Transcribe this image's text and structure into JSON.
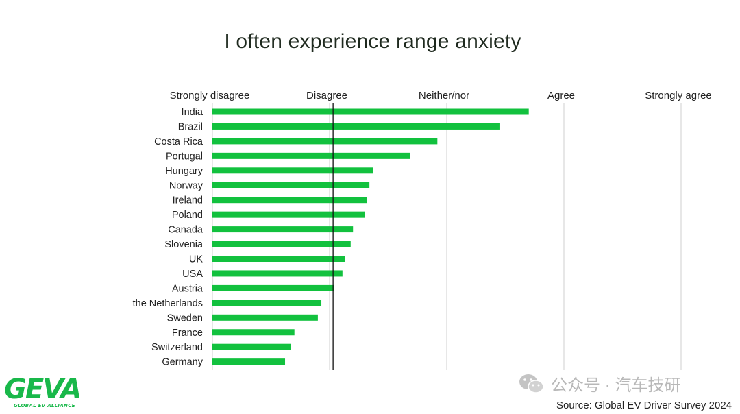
{
  "chart_data": {
    "type": "bar",
    "orientation": "horizontal",
    "title": "I often experience range anxiety",
    "scale_labels": [
      "Strongly disagree",
      "Disagree",
      "Neither/nor",
      "Agree",
      "Strongly agree"
    ],
    "xlim": [
      1,
      5
    ],
    "reference_value": 2.03,
    "grid": true,
    "categories": [
      "India",
      "Brazil",
      "Costa Rica",
      "Portugal",
      "Hungary",
      "Norway",
      "Ireland",
      "Poland",
      "Canada",
      "Slovenia",
      "UK",
      "USA",
      "Austria",
      "the Netherlands",
      "Sweden",
      "France",
      "Switzerland",
      "Germany"
    ],
    "values": [
      3.7,
      3.45,
      2.92,
      2.69,
      2.37,
      2.34,
      2.32,
      2.3,
      2.2,
      2.18,
      2.13,
      2.11,
      2.04,
      1.93,
      1.9,
      1.7,
      1.67,
      1.62
    ],
    "bar_color": "#12c13e"
  },
  "source": "Source: Global EV Driver Survey 2024",
  "watermark": "公众号 · 汽车技研",
  "logo": {
    "text": "GEVA",
    "subtitle": "GLOBAL EV ALLIANCE",
    "color": "#19b84a"
  }
}
